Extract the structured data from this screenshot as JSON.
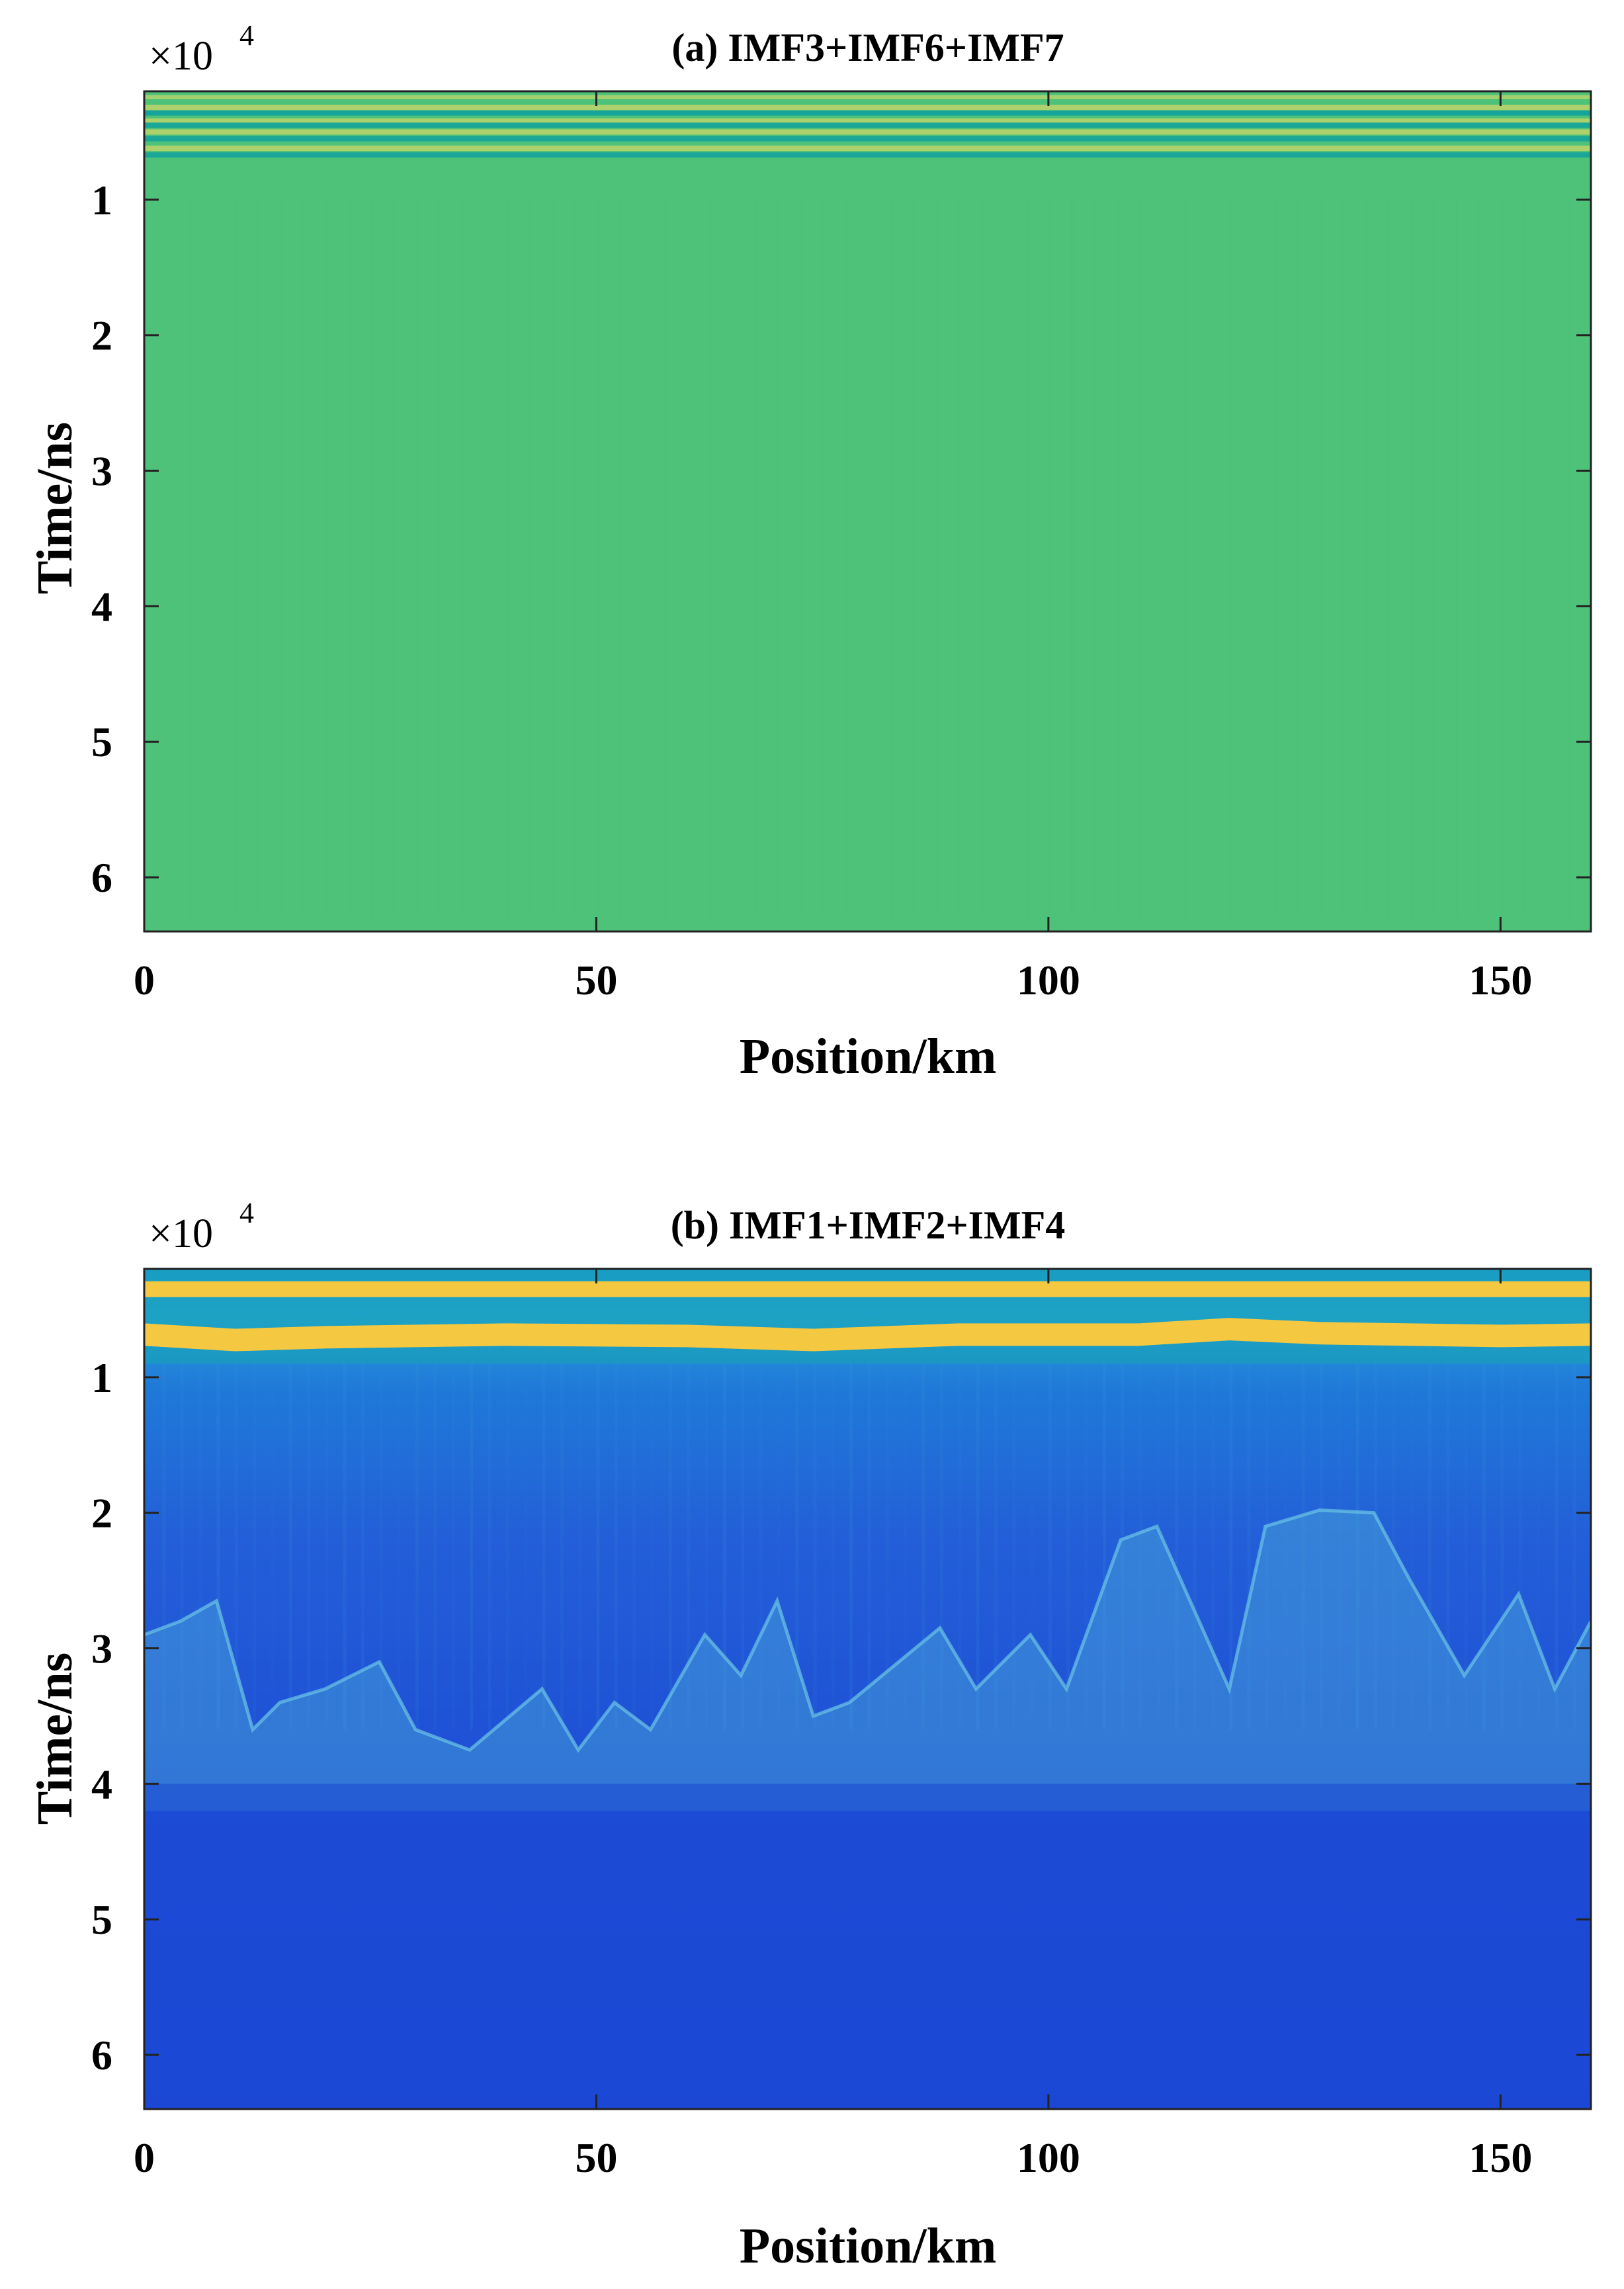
{
  "chart_data": [
    {
      "type": "heatmap",
      "title": "(a)  IMF3+IMF6+IMF7",
      "xlabel": "Position/km",
      "ylabel": "Time/ns",
      "y_multiplier": "×10",
      "y_multiplier_exp": "4",
      "xlim": [
        0,
        160
      ],
      "ylim": [
        0.2,
        6.4
      ],
      "y_reversed": true,
      "xticks": [
        0,
        50,
        100,
        150
      ],
      "yticks": [
        1,
        2,
        3,
        4,
        5,
        6
      ],
      "colormap": "parula",
      "colors": {
        "background": "#4fc27a",
        "light_band": "#b6d36b",
        "dark_band": "#14a49a"
      },
      "bands": [
        {
          "time": 0.32,
          "tone": "light"
        },
        {
          "time": 0.36,
          "tone": "dark"
        },
        {
          "time": 0.42,
          "tone": "light"
        },
        {
          "time": 0.45,
          "tone": "dark"
        },
        {
          "time": 0.5,
          "tone": "light"
        },
        {
          "time": 0.55,
          "tone": "dark"
        },
        {
          "time": 0.62,
          "tone": "light"
        },
        {
          "time": 0.67,
          "tone": "dark"
        }
      ]
    },
    {
      "type": "heatmap",
      "title": "(b)  IMF1+IMF2+IMF4",
      "xlabel": "Position/km",
      "ylabel": "Time/ns",
      "y_multiplier": "×10",
      "y_multiplier_exp": "4",
      "xlim": [
        0,
        160
      ],
      "ylim": [
        0.2,
        6.4
      ],
      "y_reversed": true,
      "xticks": [
        0,
        50,
        100,
        150
      ],
      "yticks": [
        1,
        2,
        3,
        4,
        5,
        6
      ],
      "colormap": "parula",
      "colors": {
        "deep": "#1b48d6",
        "mid": "#2c6de0",
        "upper": "#1f8ed8",
        "teal": "#14a8b0",
        "band": "#f5c842",
        "reflector": "#4fb0d8"
      },
      "band_1_time": 0.35,
      "band_2_time": [
        [
          0,
          0.68
        ],
        [
          10,
          0.72
        ],
        [
          20,
          0.7
        ],
        [
          40,
          0.68
        ],
        [
          60,
          0.69
        ],
        [
          74,
          0.72
        ],
        [
          90,
          0.68
        ],
        [
          110,
          0.68
        ],
        [
          120,
          0.64
        ],
        [
          130,
          0.67
        ],
        [
          150,
          0.69
        ],
        [
          160,
          0.68
        ]
      ],
      "reflector_tops": [
        [
          0,
          2.9
        ],
        [
          4,
          2.8
        ],
        [
          8,
          2.65
        ],
        [
          12,
          3.6
        ],
        [
          15,
          3.4
        ],
        [
          20,
          3.3
        ],
        [
          26,
          3.1
        ],
        [
          30,
          3.6
        ],
        [
          36,
          3.75
        ],
        [
          44,
          3.3
        ],
        [
          48,
          3.75
        ],
        [
          52,
          3.4
        ],
        [
          56,
          3.6
        ],
        [
          62,
          2.9
        ],
        [
          66,
          3.2
        ],
        [
          70,
          2.65
        ],
        [
          74,
          3.5
        ],
        [
          78,
          3.4
        ],
        [
          88,
          2.85
        ],
        [
          92,
          3.3
        ],
        [
          98,
          2.9
        ],
        [
          102,
          3.3
        ],
        [
          108,
          2.2
        ],
        [
          112,
          2.1
        ],
        [
          116,
          2.7
        ],
        [
          120,
          3.3
        ],
        [
          124,
          2.1
        ],
        [
          130,
          1.98
        ],
        [
          136,
          2.0
        ],
        [
          140,
          2.5
        ],
        [
          146,
          3.2
        ],
        [
          152,
          2.6
        ],
        [
          156,
          3.3
        ],
        [
          160,
          2.8
        ]
      ]
    }
  ]
}
